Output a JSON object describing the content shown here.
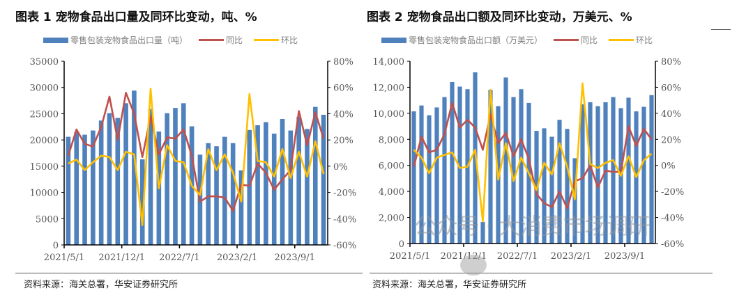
{
  "charts": [
    {
      "title": "图表 1 宠物食品出口量及同环比变动，吨、%",
      "source": "资料来源：海关总署，华安证券研究所",
      "legend": {
        "bar": "零售包装宠物食品出口量（吨）",
        "yoy": "同比",
        "mom": "环比"
      },
      "left_ticks": [
        "0",
        "5000",
        "10000",
        "15000",
        "20000",
        "25000",
        "30000",
        "35000"
      ],
      "right_ticks": [
        "-60%",
        "-40%",
        "-20%",
        "0%",
        "20%",
        "40%",
        "60%",
        "80%"
      ],
      "x_ticks": [
        "2021/5/1",
        "2021/12/1",
        "2022/7/1",
        "2023/2/1",
        "2023/9/1"
      ]
    },
    {
      "title": "图表 2 宠物食品出口额及同环比变动，万美元、%",
      "source": "资料来源：海关总署，华安证券研究所",
      "legend": {
        "bar": "零售包装宠物食品出口额（万美元）",
        "yoy": "同比",
        "mom": "环比"
      },
      "left_ticks": [
        "0",
        "2,000",
        "4,000",
        "6,000",
        "8,000",
        "10,000",
        "12,000",
        "14,000"
      ],
      "right_ticks": [
        "-60%",
        "-40%",
        "-20%",
        "0%",
        "20%",
        "40%",
        "60%",
        "80%"
      ],
      "x_ticks": [
        "2021/5/1",
        "2021/12/1",
        "2022/7/1",
        "2023/2/1",
        "2023/9/1"
      ]
    }
  ],
  "watermark": "公众号 · 大消费市场调研",
  "colors": {
    "bar": "#4f81bd",
    "yoy": "#c0504d",
    "mom": "#ffc000"
  },
  "chart_data": [
    {
      "type": "bar+line",
      "title": "图表 1 宠物食品出口量及同环比变动，吨、%",
      "categories": [
        "2021/5",
        "2021/6",
        "2021/7",
        "2021/8",
        "2021/9",
        "2021/10",
        "2021/11",
        "2021/12",
        "2022/1",
        "2022/2",
        "2022/3",
        "2022/4",
        "2022/5",
        "2022/6",
        "2022/7",
        "2022/8",
        "2022/9",
        "2022/10",
        "2022/11",
        "2022/12",
        "2023/1",
        "2023/2",
        "2023/3",
        "2023/4",
        "2023/5",
        "2023/6",
        "2023/7",
        "2023/8",
        "2023/9",
        "2023/10",
        "2023/11",
        "2023/12"
      ],
      "ylim_left": [
        0,
        35000
      ],
      "ylim_right": [
        -60,
        80
      ],
      "series": [
        {
          "name": "零售包装宠物食品出口量（吨）",
          "type": "bar",
          "axis": "left",
          "values": [
            20600,
            21500,
            21000,
            21800,
            23700,
            25100,
            24200,
            27000,
            29400,
            16300,
            25900,
            21600,
            25100,
            26100,
            27000,
            22600,
            17200,
            19400,
            18800,
            20600,
            19400,
            14200,
            21900,
            22800,
            23400,
            21200,
            24000,
            21800,
            24400,
            22100,
            26300,
            24800
          ]
        },
        {
          "name": "同比",
          "type": "line",
          "axis": "right",
          "values": [
            8,
            28,
            17,
            15,
            30,
            53,
            20,
            56,
            40,
            7,
            38,
            9,
            22,
            21,
            28,
            8,
            -27,
            -23,
            -23,
            -24,
            -34,
            -14,
            -15,
            2,
            -5,
            -18,
            -10,
            -3,
            42,
            16,
            41,
            21
          ]
        },
        {
          "name": "环比",
          "type": "line",
          "axis": "right",
          "values": [
            2,
            5,
            -3,
            3,
            8,
            7,
            -3,
            11,
            9,
            -45,
            59,
            -17,
            16,
            4,
            3,
            -15,
            -22,
            13,
            -3,
            9,
            -5,
            -27,
            55,
            4,
            3,
            -8,
            13,
            -9,
            11,
            -8,
            19,
            -6
          ]
        }
      ]
    },
    {
      "type": "bar+line",
      "title": "图表 2 宠物食品出口额及同环比变动，万美元、%",
      "categories": [
        "2021/5",
        "2021/6",
        "2021/7",
        "2021/8",
        "2021/9",
        "2021/10",
        "2021/11",
        "2021/12",
        "2022/1",
        "2022/2",
        "2022/3",
        "2022/4",
        "2022/5",
        "2022/6",
        "2022/7",
        "2022/8",
        "2022/9",
        "2022/10",
        "2022/11",
        "2022/12",
        "2023/1",
        "2023/2",
        "2023/3",
        "2023/4",
        "2023/5",
        "2023/6",
        "2023/7",
        "2023/8",
        "2023/9",
        "2023/10",
        "2023/11",
        "2023/12"
      ],
      "ylim_left": [
        0,
        14000
      ],
      "ylim_right": [
        -60,
        80
      ],
      "series": [
        {
          "name": "零售包装宠物食品出口额（万美元）",
          "type": "bar",
          "axis": "left",
          "values": [
            10150,
            10600,
            9850,
            10450,
            11250,
            12400,
            12050,
            11850,
            13150,
            1650,
            11800,
            10550,
            12750,
            11250,
            11850,
            10800,
            8650,
            8850,
            8200,
            9500,
            8800,
            6550,
            10700,
            10850,
            10550,
            10850,
            11250,
            10400,
            11200,
            10150,
            10500,
            11400
          ]
        },
        {
          "name": "同比",
          "type": "line",
          "axis": "right",
          "values": [
            -1,
            22,
            10,
            12,
            24,
            48,
            29,
            35,
            29,
            12,
            39,
            17,
            25,
            7,
            20,
            5,
            -22,
            -29,
            -32,
            -20,
            -33,
            -12,
            -10,
            0,
            -17,
            -4,
            -5,
            -5,
            30,
            15,
            28,
            20
          ]
        },
        {
          "name": "环比",
          "type": "line",
          "axis": "right",
          "values": [
            12,
            6,
            -6,
            6,
            8,
            10,
            -2,
            -1,
            12,
            -43,
            58,
            -11,
            17,
            -12,
            6,
            -6,
            -19,
            2,
            -7,
            17,
            -1,
            -26,
            63,
            1,
            -2,
            2,
            4,
            -8,
            7,
            -9,
            4,
            9
          ]
        }
      ]
    }
  ]
}
